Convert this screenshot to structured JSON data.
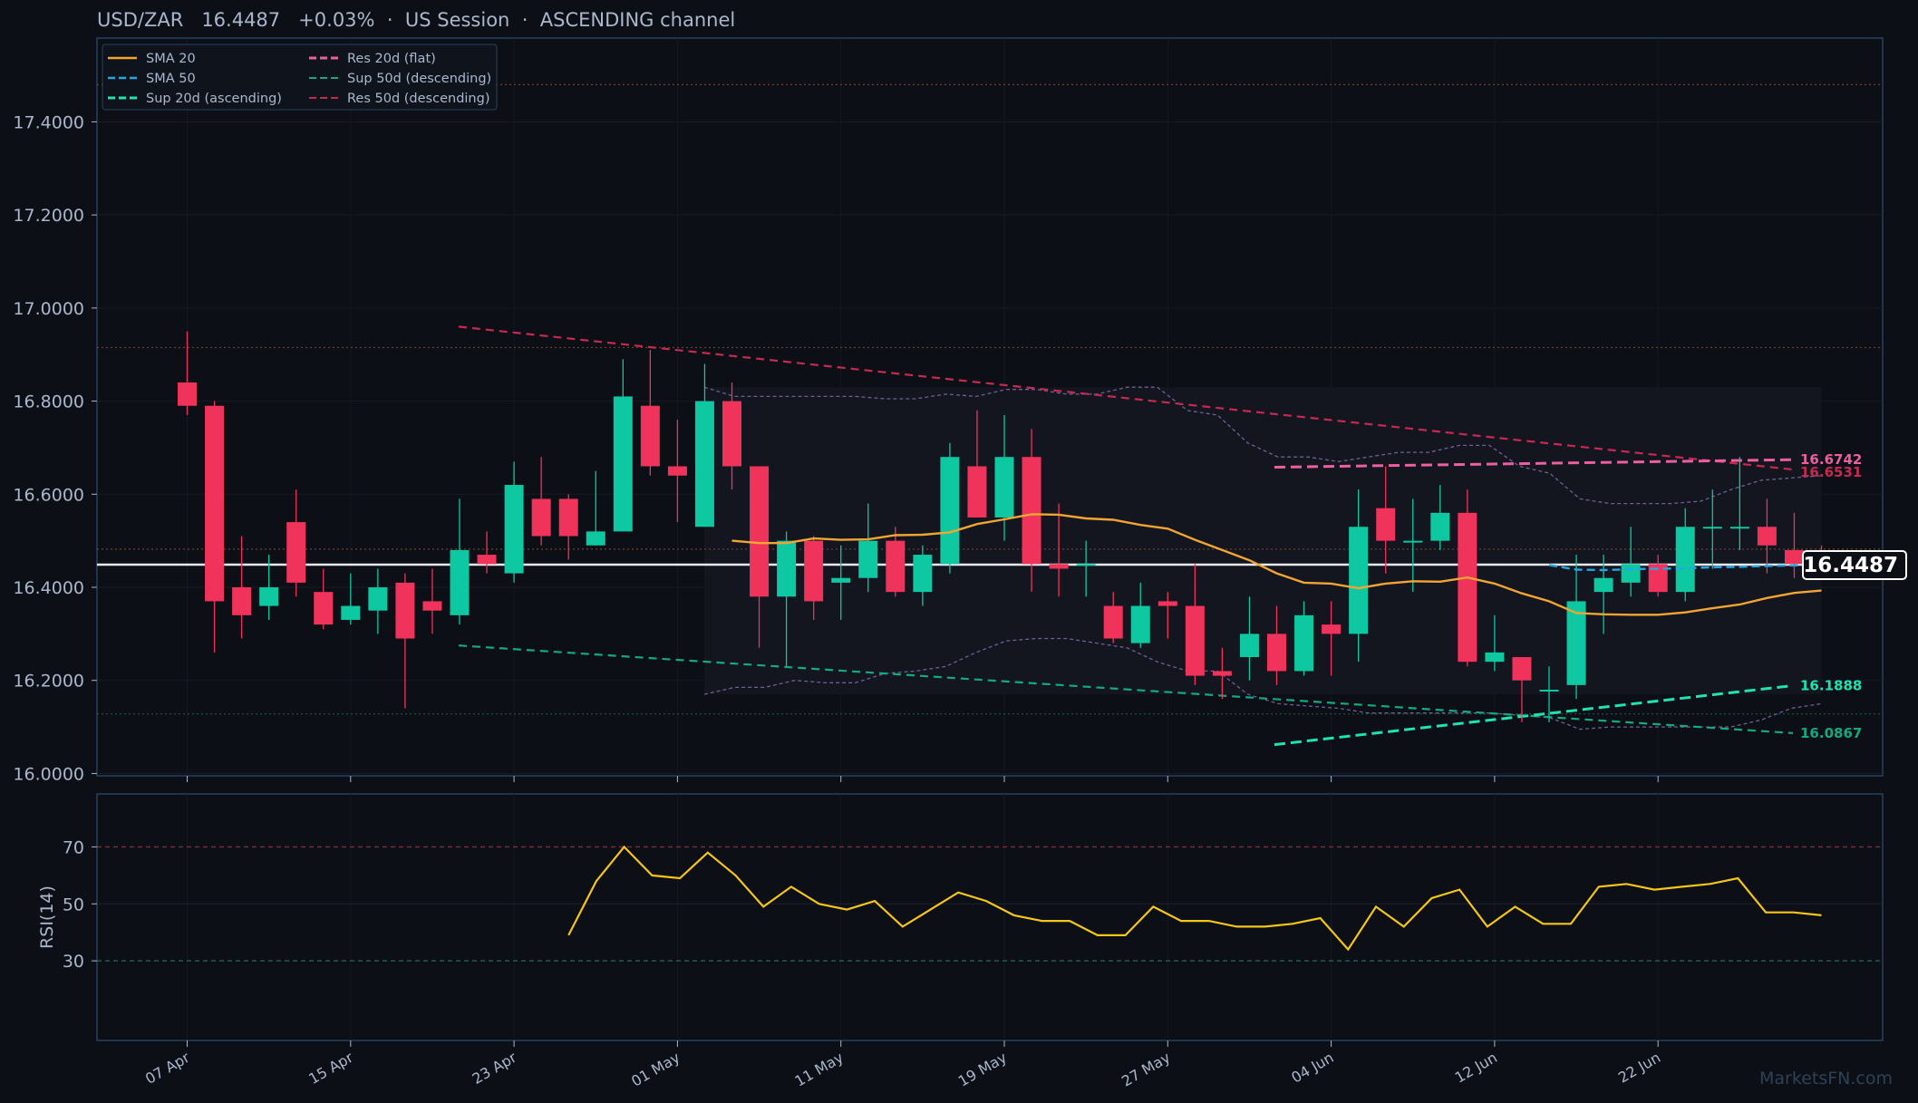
{
  "header": {
    "title": "USD/ZAR   16.4487   +0.03%  ·  US Session  ·  ASCENDING channel"
  },
  "watermark": "MarketsFN.com",
  "colors": {
    "background": "#0c0f16",
    "frame": "#27425e",
    "text": "#aab7cc",
    "up": "#0dc8a0",
    "down": "#f0335a",
    "sma20": "#f3a533",
    "sma50": "#21a8e6",
    "res_flat": "#ec5fa0",
    "sup_asc": "#1fe3b1",
    "sup_desc": "#14a97f",
    "res_desc": "#c8294f",
    "rsi": "#f5c518",
    "band": "#6f5f95"
  },
  "chart_data": [
    {
      "type": "candlestick",
      "title": "USD/ZAR   16.4487   +0.03%  ·  US Session  ·  ASCENDING channel",
      "ylim": [
        15.995,
        17.58
      ],
      "y_ticks": [
        "16.0000",
        "16.2000",
        "16.4000",
        "16.6000",
        "16.8000",
        "17.0000",
        "17.2000",
        "17.4000"
      ],
      "x_ticks": [
        "07 Apr",
        "15 Apr",
        "23 Apr",
        "01 May",
        "11 May",
        "19 May",
        "27 May",
        "04 Jun",
        "12 Jun",
        "22 Jun"
      ],
      "grid": true,
      "legend_position": "top-left",
      "legend": [
        "SMA 20",
        "SMA 50",
        "Sup 20d (ascending)",
        "Res 20d (flat)",
        "Sup 50d (descending)",
        "Res 50d (descending)"
      ],
      "last_price": "16.4487",
      "candles": [
        [
          16.84,
          16.95,
          16.77,
          16.79
        ],
        [
          16.79,
          16.8,
          16.26,
          16.37
        ],
        [
          16.4,
          16.51,
          16.29,
          16.34
        ],
        [
          16.36,
          16.47,
          16.33,
          16.4
        ],
        [
          16.54,
          16.61,
          16.38,
          16.41
        ],
        [
          16.39,
          16.44,
          16.31,
          16.32
        ],
        [
          16.33,
          16.43,
          16.32,
          16.36
        ],
        [
          16.35,
          16.44,
          16.3,
          16.4
        ],
        [
          16.41,
          16.43,
          16.14,
          16.29
        ],
        [
          16.37,
          16.44,
          16.3,
          16.35
        ],
        [
          16.34,
          16.59,
          16.32,
          16.48
        ],
        [
          16.47,
          16.52,
          16.43,
          16.45
        ],
        [
          16.43,
          16.67,
          16.41,
          16.62
        ],
        [
          16.59,
          16.68,
          16.49,
          16.51
        ],
        [
          16.59,
          16.6,
          16.46,
          16.51
        ],
        [
          16.49,
          16.65,
          16.49,
          16.52
        ],
        [
          16.52,
          16.89,
          16.52,
          16.81
        ],
        [
          16.79,
          16.91,
          16.64,
          16.66
        ],
        [
          16.66,
          16.76,
          16.54,
          16.64
        ],
        [
          16.53,
          16.88,
          16.53,
          16.8
        ],
        [
          16.8,
          16.84,
          16.61,
          16.66
        ],
        [
          16.66,
          16.66,
          16.27,
          16.38
        ],
        [
          16.38,
          16.52,
          16.23,
          16.5
        ],
        [
          16.5,
          16.51,
          16.33,
          16.37
        ],
        [
          16.41,
          16.49,
          16.33,
          16.42
        ],
        [
          16.42,
          16.58,
          16.39,
          16.5
        ],
        [
          16.5,
          16.53,
          16.38,
          16.39
        ],
        [
          16.39,
          16.49,
          16.36,
          16.47
        ],
        [
          16.45,
          16.71,
          16.43,
          16.68
        ],
        [
          16.66,
          16.78,
          16.55,
          16.55
        ],
        [
          16.55,
          16.77,
          16.5,
          16.68
        ],
        [
          16.68,
          16.74,
          16.39,
          16.45
        ],
        [
          16.45,
          16.58,
          16.38,
          16.44
        ],
        [
          16.45,
          16.5,
          16.38,
          16.45
        ],
        [
          16.36,
          16.39,
          16.28,
          16.29
        ],
        [
          16.28,
          16.41,
          16.27,
          16.36
        ],
        [
          16.37,
          16.39,
          16.29,
          16.36
        ],
        [
          16.36,
          16.45,
          16.19,
          16.21
        ],
        [
          16.22,
          16.27,
          16.16,
          16.21
        ],
        [
          16.25,
          16.38,
          16.2,
          16.3
        ],
        [
          16.3,
          16.36,
          16.19,
          16.22
        ],
        [
          16.22,
          16.37,
          16.21,
          16.34
        ],
        [
          16.32,
          16.37,
          16.21,
          16.3
        ],
        [
          16.3,
          16.61,
          16.24,
          16.53
        ],
        [
          16.57,
          16.66,
          16.43,
          16.5
        ],
        [
          16.5,
          16.59,
          16.39,
          16.5
        ],
        [
          16.5,
          16.62,
          16.48,
          16.56
        ],
        [
          16.56,
          16.61,
          16.23,
          16.24
        ],
        [
          16.24,
          16.34,
          16.22,
          16.26
        ],
        [
          16.25,
          16.25,
          16.11,
          16.2
        ],
        [
          16.18,
          16.23,
          16.11,
          16.18
        ],
        [
          16.19,
          16.47,
          16.16,
          16.37
        ],
        [
          16.39,
          16.47,
          16.3,
          16.42
        ],
        [
          16.41,
          16.53,
          16.38,
          16.45
        ],
        [
          16.45,
          16.47,
          16.38,
          16.39
        ],
        [
          16.39,
          16.57,
          16.37,
          16.53
        ],
        [
          16.53,
          16.61,
          16.44,
          16.53
        ],
        [
          16.53,
          16.68,
          16.48,
          16.53
        ],
        [
          16.53,
          16.59,
          16.43,
          16.49
        ],
        [
          16.48,
          16.56,
          16.42,
          16.45
        ],
        [
          16.45,
          16.49,
          16.42,
          16.42
        ]
      ],
      "levels": [
        {
          "name": "Res 20d (flat)",
          "label": "16.6742",
          "color": "#ec5fa0"
        },
        {
          "name": "Res 50d (descending)",
          "label": "16.6531",
          "color": "#c8294f"
        },
        {
          "name": "Sup 20d (ascending)",
          "label": "16.1888",
          "color": "#1fe3b1"
        },
        {
          "name": "Sup 50d (descending)",
          "label": "16.0867",
          "color": "#14a97f"
        }
      ]
    },
    {
      "type": "line",
      "ylabel": "RSI(14)",
      "ylim": [
        0,
        100
      ],
      "y_ticks": [
        "30",
        "50",
        "70"
      ],
      "overbought": 70,
      "oversold": 30,
      "series": [
        {
          "values": [
            39,
            58,
            70,
            60,
            59,
            68,
            60,
            49,
            56,
            50,
            48,
            51,
            42,
            48,
            54,
            51,
            46,
            44,
            44,
            39,
            39,
            49,
            44,
            44,
            42,
            42,
            43,
            45,
            34,
            49,
            42,
            52,
            55,
            42,
            49,
            43,
            43,
            56,
            57,
            55,
            56,
            57,
            59,
            47,
            47,
            46
          ]
        }
      ]
    }
  ]
}
